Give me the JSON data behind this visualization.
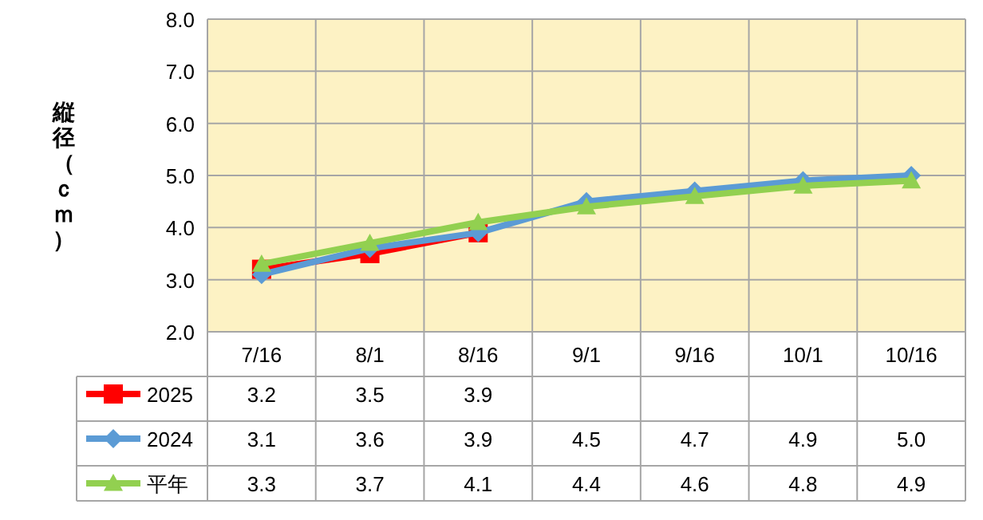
{
  "chart_data": {
    "type": "line",
    "ylabel": "縦径（ｃｍ）",
    "categories": [
      "7/16",
      "8/1",
      "8/16",
      "9/1",
      "9/16",
      "10/1",
      "10/16"
    ],
    "series": [
      {
        "name": "2025",
        "color": "#ff0000",
        "marker": "square",
        "values": [
          3.2,
          3.5,
          3.9,
          null,
          null,
          null,
          null
        ],
        "value_labels": [
          "3.2",
          "3.5",
          "3.9",
          null,
          null,
          null,
          null
        ]
      },
      {
        "name": "2024",
        "color": "#5b9bd5",
        "marker": "diamond",
        "values": [
          3.1,
          3.6,
          3.9,
          4.5,
          4.7,
          4.9,
          5.0
        ],
        "value_labels": [
          "3.1",
          "3.6",
          "3.9",
          "4.5",
          "4.7",
          "4.9",
          "5.0"
        ]
      },
      {
        "name": "平年",
        "color": "#92d050",
        "marker": "triangle",
        "values": [
          3.3,
          3.7,
          4.1,
          4.4,
          4.6,
          4.8,
          4.9
        ],
        "value_labels": [
          "3.3",
          "3.7",
          "4.1",
          "4.4",
          "4.6",
          "4.8",
          "4.9"
        ]
      }
    ],
    "ylim": [
      2,
      8
    ],
    "yticks": [
      {
        "value": 2,
        "label": "2.0"
      },
      {
        "value": 3,
        "label": "3.0"
      },
      {
        "value": 4,
        "label": "4.0"
      },
      {
        "value": 5,
        "label": "5.0"
      },
      {
        "value": 6,
        "label": "6.0"
      },
      {
        "value": 7,
        "label": "7.0"
      },
      {
        "value": 8,
        "label": "8.0"
      }
    ],
    "grid": true,
    "legend": "bottom left",
    "line_style": "solid"
  }
}
